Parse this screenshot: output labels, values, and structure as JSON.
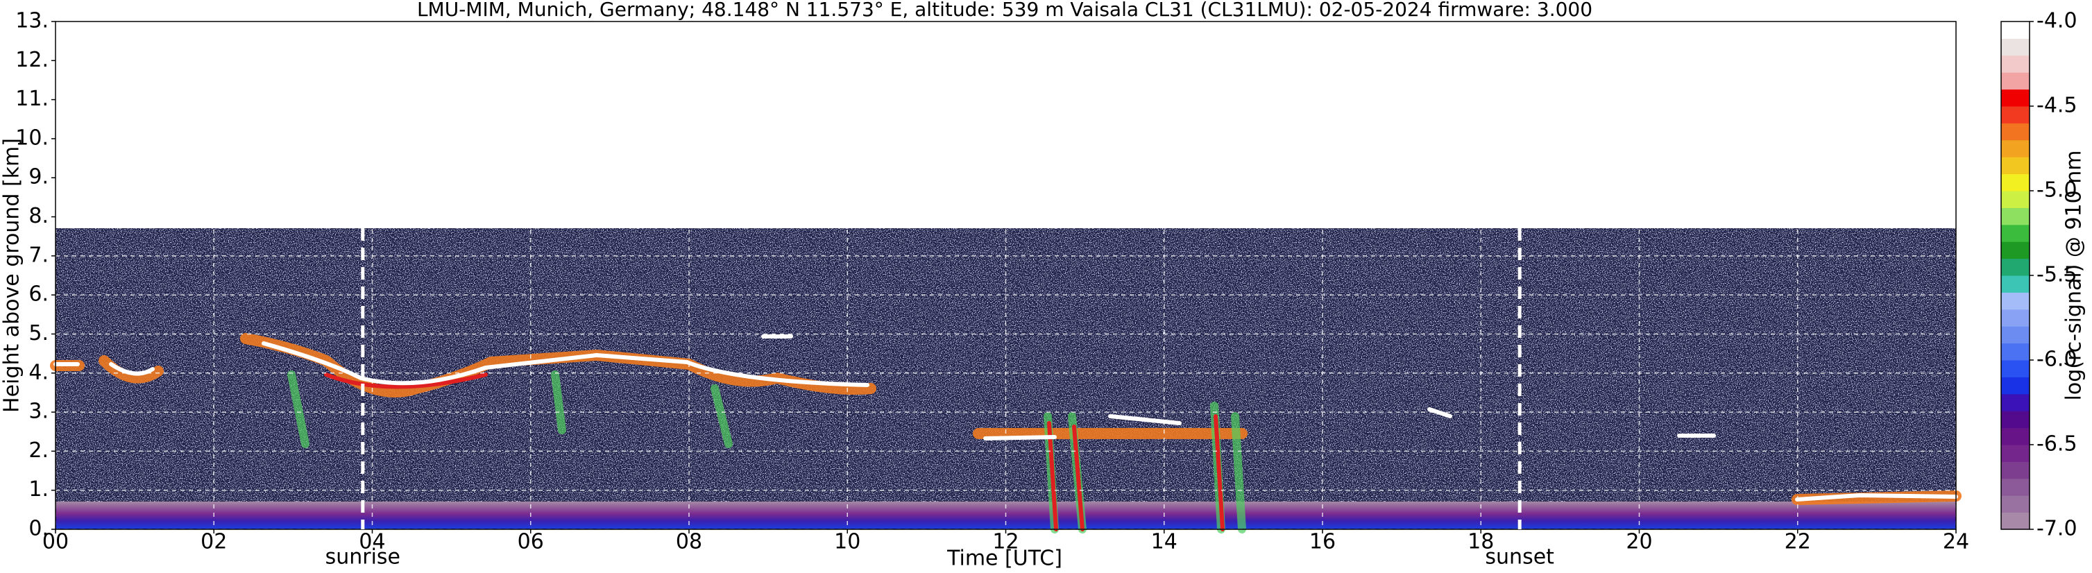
{
  "chart_data": {
    "type": "heatmap",
    "title": "LMU-MIM, Munich, Germany; 48.148° N 11.573° E, altitude: 539 m    Vaisala CL31 (CL31LMU): 02-05-2024    firmware: 3.000",
    "x_label": "Time [UTC]",
    "y_label": "Height above ground [km]",
    "xlim": [
      0,
      24
    ],
    "xticks": [
      {
        "value": 0,
        "label": "00"
      },
      {
        "value": 2,
        "label": "02"
      },
      {
        "value": 4,
        "label": "04"
      },
      {
        "value": 6,
        "label": "06"
      },
      {
        "value": 8,
        "label": "08"
      },
      {
        "value": 10,
        "label": "10"
      },
      {
        "value": 12,
        "label": "12"
      },
      {
        "value": 14,
        "label": "14"
      },
      {
        "value": 16,
        "label": "16"
      },
      {
        "value": 18,
        "label": "18"
      },
      {
        "value": 20,
        "label": "20"
      },
      {
        "value": 22,
        "label": "22"
      },
      {
        "value": 24,
        "label": "24"
      }
    ],
    "ylim": [
      0,
      13
    ],
    "yticks": [
      {
        "value": 0,
        "label": "0."
      },
      {
        "value": 1,
        "label": "1."
      },
      {
        "value": 2,
        "label": "2."
      },
      {
        "value": 3,
        "label": "3."
      },
      {
        "value": 4,
        "label": "4."
      },
      {
        "value": 5,
        "label": "5."
      },
      {
        "value": 6,
        "label": "6."
      },
      {
        "value": 7,
        "label": "7."
      },
      {
        "value": 8,
        "label": "8."
      },
      {
        "value": 9,
        "label": "9."
      },
      {
        "value": 10,
        "label": "10."
      },
      {
        "value": 11,
        "label": "11."
      },
      {
        "value": 12,
        "label": "12."
      },
      {
        "value": 13,
        "label": "13."
      }
    ],
    "grid": true,
    "annotations": [
      {
        "text": "sunrise",
        "x": 3.88
      },
      {
        "text": "sunset",
        "x": 18.49
      }
    ],
    "colorbar": {
      "label": "log(rc-signal) @ 910 nm",
      "lim": [
        -7,
        -4
      ],
      "ticks": [
        {
          "value": -4,
          "label": "-4.0"
        },
        -4.5,
        {
          "value": -5,
          "label": "-5.0"
        },
        -5.5,
        {
          "value": -6,
          "label": "-6.0"
        },
        -6.5,
        {
          "value": -7,
          "label": "-7.0"
        }
      ],
      "colors": [
        "#a88aa8",
        "#9a72a2",
        "#8c5a98",
        "#7e3e90",
        "#74268c",
        "#661488",
        "#540a8c",
        "#3a12b8",
        "#1a32e6",
        "#2a52f2",
        "#4a72f2",
        "#6c8cf2",
        "#8aa2f4",
        "#a4bcf8",
        "#3cc4b4",
        "#20a870",
        "#1e9a24",
        "#3cbc3c",
        "#8ee060",
        "#cdf044",
        "#f2f020",
        "#f2c820",
        "#f2a420",
        "#f27420",
        "#f23a20",
        "#f00000",
        "#f2a4a4",
        "#f2caca",
        "#ebe2e2",
        "#ffffff"
      ]
    }
  }
}
